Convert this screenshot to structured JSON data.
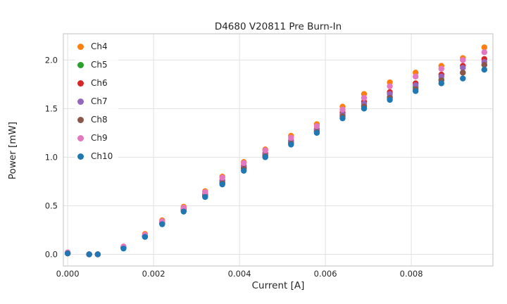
{
  "chart_data": {
    "type": "scatter",
    "title": "D4680 V20811 Pre Burn-In",
    "xlabel": "Current [A]",
    "ylabel": "Power [mW]",
    "xlim": [
      -0.0001,
      0.0099
    ],
    "ylim": [
      -0.12,
      2.27
    ],
    "xticks": [
      0.0,
      0.002,
      0.004,
      0.006,
      0.008
    ],
    "xtick_labels": [
      "0.000",
      "0.002",
      "0.004",
      "0.006",
      "0.008"
    ],
    "yticks": [
      0.0,
      0.5,
      1.0,
      1.5,
      2.0
    ],
    "ytick_labels": [
      "0.0",
      "0.5",
      "1.0",
      "1.5",
      "2.0"
    ],
    "grid": true,
    "grid_color": "#e1e1e1",
    "spine_color": "#cccccc",
    "legend_position": "upper left",
    "x": [
      0.0,
      0.0005,
      0.0007,
      0.0013,
      0.0018,
      0.0022,
      0.0027,
      0.0032,
      0.0036,
      0.0041,
      0.0046,
      0.0052,
      0.0058,
      0.0064,
      0.0069,
      0.0075,
      0.0081,
      0.0087,
      0.0092,
      0.0097
    ],
    "series": [
      {
        "name": "Ch4",
        "color": "#ff7f0e",
        "values": [
          0.02,
          0.0,
          0.0,
          0.08,
          0.21,
          0.35,
          0.49,
          0.65,
          0.8,
          0.95,
          1.08,
          1.22,
          1.34,
          1.52,
          1.65,
          1.77,
          1.87,
          1.94,
          2.02,
          2.13
        ]
      },
      {
        "name": "Ch5",
        "color": "#2ca02c",
        "values": [
          0.01,
          0.0,
          0.0,
          0.07,
          0.19,
          0.32,
          0.46,
          0.61,
          0.74,
          0.89,
          1.02,
          1.15,
          1.27,
          1.43,
          1.53,
          1.62,
          1.72,
          1.8,
          1.87,
          1.95
        ]
      },
      {
        "name": "Ch6",
        "color": "#d62728",
        "values": [
          0.01,
          0.0,
          0.0,
          0.07,
          0.19,
          0.33,
          0.47,
          0.62,
          0.76,
          0.91,
          1.04,
          1.17,
          1.29,
          1.46,
          1.57,
          1.67,
          1.76,
          1.85,
          1.94,
          2.01
        ]
      },
      {
        "name": "Ch7",
        "color": "#9467bd",
        "values": [
          0.01,
          0.0,
          0.0,
          0.07,
          0.19,
          0.33,
          0.46,
          0.62,
          0.75,
          0.9,
          1.03,
          1.16,
          1.28,
          1.44,
          1.55,
          1.65,
          1.74,
          1.83,
          1.92,
          1.98
        ]
      },
      {
        "name": "Ch8",
        "color": "#8c564b",
        "values": [
          0.01,
          0.0,
          0.0,
          0.07,
          0.18,
          0.32,
          0.45,
          0.6,
          0.73,
          0.88,
          1.01,
          1.14,
          1.26,
          1.42,
          1.52,
          1.61,
          1.7,
          1.79,
          1.87,
          1.95
        ]
      },
      {
        "name": "Ch9",
        "color": "#e377c2",
        "values": [
          0.02,
          0.0,
          0.0,
          0.08,
          0.2,
          0.34,
          0.48,
          0.64,
          0.79,
          0.94,
          1.07,
          1.2,
          1.32,
          1.49,
          1.61,
          1.73,
          1.83,
          1.91,
          2.0,
          2.08
        ]
      },
      {
        "name": "Ch10",
        "color": "#1f77b4",
        "values": [
          0.01,
          0.0,
          0.0,
          0.06,
          0.18,
          0.31,
          0.44,
          0.59,
          0.72,
          0.86,
          1.0,
          1.13,
          1.25,
          1.4,
          1.5,
          1.59,
          1.68,
          1.76,
          1.81,
          1.9
        ]
      }
    ]
  }
}
